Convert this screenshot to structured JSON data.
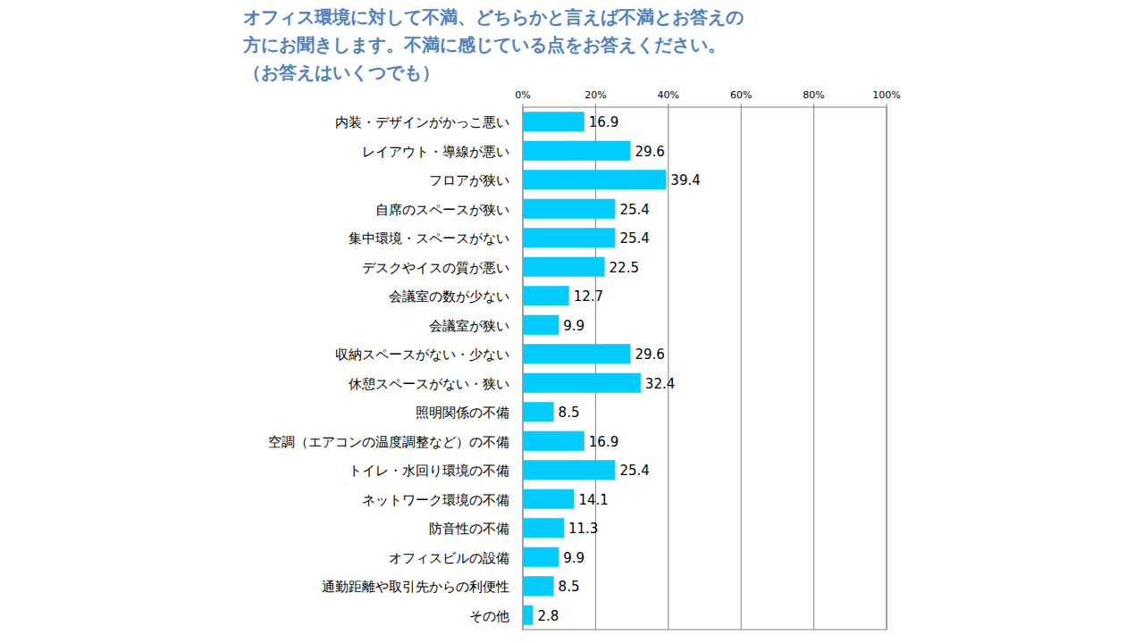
{
  "chart_data": {
    "type": "bar",
    "orientation": "horizontal",
    "title": "オフィス環境に対して不満、どちらかと言えば不満とお答えの\n方にお聞きします。不満に感じている点をお答えください。\n（お答えはいくつでも）",
    "categories": [
      "内装・デザインがかっこ悪い",
      "レイアウト・導線が悪い",
      "フロアが狭い",
      "自席のスペースが狭い",
      "集中環境・スペースがない",
      "デスクやイスの質が悪い",
      "会議室の数が少ない",
      "会議室が狭い",
      "収納スペースがない・少ない",
      "休憩スペースがない・狭い",
      "照明関係の不備",
      "空調（エアコンの温度調整など）の不備",
      "トイレ・水回り環境の不備",
      "ネットワーク環境の不備",
      "防音性の不備",
      "オフィスビルの設備",
      "通勤距離や取引先からの利便性",
      "その他"
    ],
    "values": [
      16.9,
      29.6,
      39.4,
      25.4,
      25.4,
      22.5,
      12.7,
      9.9,
      29.6,
      32.4,
      8.5,
      16.9,
      25.4,
      14.1,
      11.3,
      9.9,
      8.5,
      2.8
    ],
    "color": "#00ccff",
    "xlim": [
      0,
      100
    ],
    "xticks": [
      {
        "value": 0,
        "label": "0%"
      },
      {
        "value": 20,
        "label": "20%"
      },
      {
        "value": 40,
        "label": "40%"
      },
      {
        "value": 60,
        "label": "60%"
      },
      {
        "value": 80,
        "label": "80%"
      },
      {
        "value": 100,
        "label": "100%"
      }
    ],
    "grid": true,
    "data_labels": true
  }
}
